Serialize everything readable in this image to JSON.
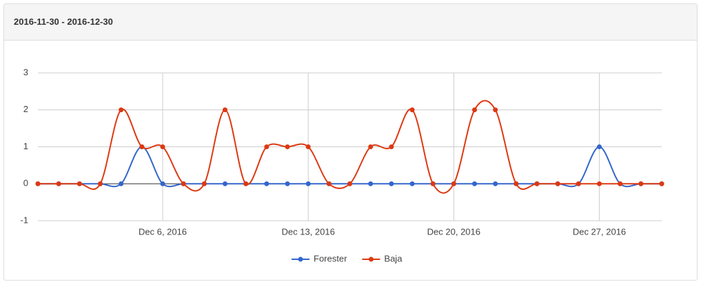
{
  "chart_data": {
    "type": "line",
    "title": "2016-11-30 - 2016-12-30",
    "x": [
      "2016-11-30",
      "2016-12-01",
      "2016-12-02",
      "2016-12-03",
      "2016-12-04",
      "2016-12-05",
      "2016-12-06",
      "2016-12-07",
      "2016-12-08",
      "2016-12-09",
      "2016-12-10",
      "2016-12-11",
      "2016-12-12",
      "2016-12-13",
      "2016-12-14",
      "2016-12-15",
      "2016-12-16",
      "2016-12-17",
      "2016-12-18",
      "2016-12-19",
      "2016-12-20",
      "2016-12-21",
      "2016-12-22",
      "2016-12-23",
      "2016-12-24",
      "2016-12-25",
      "2016-12-26",
      "2016-12-27",
      "2016-12-28",
      "2016-12-29",
      "2016-12-30"
    ],
    "series": [
      {
        "name": "Forester",
        "color": "#3366cc",
        "values": [
          0,
          0,
          0,
          0,
          0,
          1,
          0,
          0,
          0,
          0,
          0,
          0,
          0,
          0,
          0,
          0,
          0,
          0,
          0,
          0,
          0,
          0,
          0,
          0,
          0,
          0,
          0,
          1,
          0,
          0,
          0
        ]
      },
      {
        "name": "Baja",
        "color": "#dc3912",
        "values": [
          0,
          0,
          0,
          0,
          2,
          1,
          1,
          0,
          0,
          2,
          0,
          1,
          1,
          1,
          0,
          0,
          1,
          1,
          2,
          0,
          0,
          2,
          2,
          0,
          0,
          0,
          0,
          0,
          0,
          0,
          0
        ]
      }
    ],
    "xlim": [
      "2016-11-30",
      "2016-12-30"
    ],
    "xticks": [
      {
        "value": "2016-12-06",
        "label": "Dec 6, 2016"
      },
      {
        "value": "2016-12-13",
        "label": "Dec 13, 2016"
      },
      {
        "value": "2016-12-20",
        "label": "Dec 20, 2016"
      },
      {
        "value": "2016-12-27",
        "label": "Dec 27, 2016"
      }
    ],
    "ylim": [
      -1,
      3
    ],
    "yticks": [
      -1,
      0,
      1,
      2,
      3
    ],
    "grid": true,
    "curve": "smooth",
    "legend": "bottom"
  }
}
